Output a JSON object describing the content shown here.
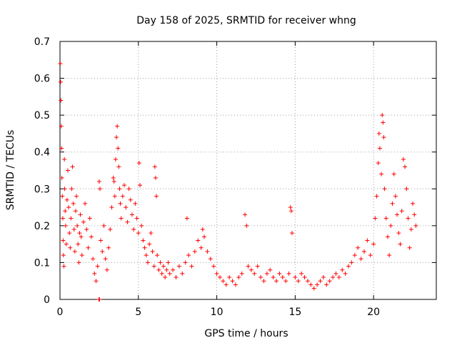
{
  "chart_data": {
    "type": "scatter",
    "title": "Day 158 of 2025, SRMTID for receiver whng",
    "xlabel": "GPS time / hours",
    "ylabel": "SRMTID / TECUs",
    "xlim": [
      0,
      24
    ],
    "ylim": [
      0,
      0.7
    ],
    "xticks": [
      0,
      5,
      10,
      15,
      20
    ],
    "xtick_labels": [
      "0",
      "5",
      "10",
      "15",
      "20"
    ],
    "yticks": [
      0,
      0.1,
      0.2,
      0.3,
      0.4,
      0.5,
      0.6,
      0.7
    ],
    "ytick_labels": [
      "0",
      "0.1",
      "0.2",
      "0.3",
      "0.4",
      "0.5",
      "0.6",
      "0.7"
    ],
    "grid": true,
    "marker": "+",
    "series": [
      {
        "name": "SRMTID",
        "color": "#ff0000",
        "points": [
          [
            0.02,
            0.64
          ],
          [
            0.04,
            0.59
          ],
          [
            0.06,
            0.54
          ],
          [
            0.08,
            0.47
          ],
          [
            0.1,
            0.41
          ],
          [
            0.12,
            0.33
          ],
          [
            0.15,
            0.28
          ],
          [
            0.18,
            0.22
          ],
          [
            0.2,
            0.16
          ],
          [
            0.22,
            0.12
          ],
          [
            0.25,
            0.09
          ],
          [
            0.28,
            0.38
          ],
          [
            0.3,
            0.3
          ],
          [
            0.33,
            0.24
          ],
          [
            0.36,
            0.2
          ],
          [
            0.4,
            0.15
          ],
          [
            0.45,
            0.27
          ],
          [
            0.5,
            0.35
          ],
          [
            0.55,
            0.25
          ],
          [
            0.6,
            0.18
          ],
          [
            0.65,
            0.14
          ],
          [
            0.7,
            0.22
          ],
          [
            0.75,
            0.3
          ],
          [
            0.8,
            0.36
          ],
          [
            0.85,
            0.26
          ],
          [
            0.9,
            0.19
          ],
          [
            0.95,
            0.13
          ],
          [
            1.0,
            0.24
          ],
          [
            1.05,
            0.28
          ],
          [
            1.1,
            0.2
          ],
          [
            1.15,
            0.15
          ],
          [
            1.2,
            0.1
          ],
          [
            1.25,
            0.18
          ],
          [
            1.3,
            0.23
          ],
          [
            1.35,
            0.17
          ],
          [
            1.4,
            0.12
          ],
          [
            1.5,
            0.21
          ],
          [
            1.6,
            0.26
          ],
          [
            1.7,
            0.19
          ],
          [
            1.8,
            0.14
          ],
          [
            1.9,
            0.22
          ],
          [
            2.0,
            0.17
          ],
          [
            2.1,
            0.11
          ],
          [
            2.2,
            0.07
          ],
          [
            2.3,
            0.05
          ],
          [
            2.4,
            0.09
          ],
          [
            2.5,
            0.32
          ],
          [
            2.55,
            0.3
          ],
          [
            2.6,
            0.16
          ],
          [
            2.7,
            0.13
          ],
          [
            2.8,
            0.2
          ],
          [
            2.9,
            0.11
          ],
          [
            3.0,
            0.08
          ],
          [
            3.1,
            0.14
          ],
          [
            3.2,
            0.19
          ],
          [
            3.3,
            0.25
          ],
          [
            3.4,
            0.33
          ],
          [
            3.45,
            0.32
          ],
          [
            3.5,
            0.28
          ],
          [
            3.55,
            0.38
          ],
          [
            3.6,
            0.44
          ],
          [
            3.65,
            0.47
          ],
          [
            3.7,
            0.41
          ],
          [
            3.75,
            0.36
          ],
          [
            3.8,
            0.3
          ],
          [
            3.85,
            0.26
          ],
          [
            3.9,
            0.22
          ],
          [
            4.0,
            0.28
          ],
          [
            4.1,
            0.31
          ],
          [
            4.2,
            0.25
          ],
          [
            4.3,
            0.21
          ],
          [
            4.4,
            0.3
          ],
          [
            4.5,
            0.27
          ],
          [
            4.6,
            0.23
          ],
          [
            4.7,
            0.19
          ],
          [
            4.8,
            0.26
          ],
          [
            4.9,
            0.22
          ],
          [
            5.0,
            0.18
          ],
          [
            5.05,
            0.37
          ],
          [
            5.1,
            0.31
          ],
          [
            5.2,
            0.2
          ],
          [
            5.3,
            0.16
          ],
          [
            5.4,
            0.14
          ],
          [
            5.5,
            0.12
          ],
          [
            5.6,
            0.1
          ],
          [
            5.7,
            0.15
          ],
          [
            5.8,
            0.18
          ],
          [
            5.9,
            0.13
          ],
          [
            6.0,
            0.09
          ],
          [
            6.05,
            0.36
          ],
          [
            6.1,
            0.33
          ],
          [
            6.15,
            0.28
          ],
          [
            6.2,
            0.12
          ],
          [
            6.3,
            0.08
          ],
          [
            6.4,
            0.1
          ],
          [
            6.5,
            0.07
          ],
          [
            6.6,
            0.09
          ],
          [
            6.7,
            0.06
          ],
          [
            6.8,
            0.08
          ],
          [
            6.9,
            0.1
          ],
          [
            7.0,
            0.07
          ],
          [
            7.2,
            0.08
          ],
          [
            7.4,
            0.06
          ],
          [
            7.6,
            0.09
          ],
          [
            7.8,
            0.07
          ],
          [
            8.0,
            0.1
          ],
          [
            8.1,
            0.22
          ],
          [
            8.2,
            0.12
          ],
          [
            8.4,
            0.09
          ],
          [
            8.6,
            0.13
          ],
          [
            8.8,
            0.16
          ],
          [
            9.0,
            0.14
          ],
          [
            9.1,
            0.19
          ],
          [
            9.2,
            0.17
          ],
          [
            9.4,
            0.13
          ],
          [
            9.6,
            0.11
          ],
          [
            9.8,
            0.09
          ],
          [
            10.0,
            0.07
          ],
          [
            10.2,
            0.06
          ],
          [
            10.4,
            0.05
          ],
          [
            10.6,
            0.04
          ],
          [
            10.8,
            0.06
          ],
          [
            11.0,
            0.05
          ],
          [
            11.2,
            0.04
          ],
          [
            11.4,
            0.06
          ],
          [
            11.6,
            0.07
          ],
          [
            11.8,
            0.23
          ],
          [
            11.9,
            0.2
          ],
          [
            12.0,
            0.09
          ],
          [
            12.2,
            0.08
          ],
          [
            12.4,
            0.07
          ],
          [
            12.6,
            0.09
          ],
          [
            12.8,
            0.06
          ],
          [
            13.0,
            0.05
          ],
          [
            13.2,
            0.07
          ],
          [
            13.4,
            0.08
          ],
          [
            13.6,
            0.06
          ],
          [
            13.8,
            0.05
          ],
          [
            14.0,
            0.07
          ],
          [
            14.2,
            0.06
          ],
          [
            14.4,
            0.05
          ],
          [
            14.6,
            0.07
          ],
          [
            14.7,
            0.25
          ],
          [
            14.75,
            0.24
          ],
          [
            14.8,
            0.18
          ],
          [
            15.0,
            0.06
          ],
          [
            15.2,
            0.05
          ],
          [
            15.4,
            0.07
          ],
          [
            15.6,
            0.06
          ],
          [
            15.8,
            0.05
          ],
          [
            16.0,
            0.04
          ],
          [
            16.2,
            0.03
          ],
          [
            16.4,
            0.04
          ],
          [
            16.6,
            0.05
          ],
          [
            16.8,
            0.06
          ],
          [
            17.0,
            0.04
          ],
          [
            17.2,
            0.05
          ],
          [
            17.4,
            0.06
          ],
          [
            17.6,
            0.07
          ],
          [
            17.8,
            0.06
          ],
          [
            18.0,
            0.08
          ],
          [
            18.2,
            0.07
          ],
          [
            18.4,
            0.09
          ],
          [
            18.6,
            0.1
          ],
          [
            18.8,
            0.12
          ],
          [
            19.0,
            0.14
          ],
          [
            19.2,
            0.11
          ],
          [
            19.4,
            0.13
          ],
          [
            19.6,
            0.16
          ],
          [
            19.8,
            0.12
          ],
          [
            20.0,
            0.15
          ],
          [
            20.1,
            0.22
          ],
          [
            20.2,
            0.28
          ],
          [
            20.3,
            0.37
          ],
          [
            20.35,
            0.45
          ],
          [
            20.4,
            0.41
          ],
          [
            20.5,
            0.34
          ],
          [
            20.55,
            0.5
          ],
          [
            20.6,
            0.48
          ],
          [
            20.65,
            0.44
          ],
          [
            20.7,
            0.3
          ],
          [
            20.8,
            0.22
          ],
          [
            20.9,
            0.17
          ],
          [
            21.0,
            0.12
          ],
          [
            21.1,
            0.2
          ],
          [
            21.2,
            0.26
          ],
          [
            21.3,
            0.34
          ],
          [
            21.4,
            0.28
          ],
          [
            21.5,
            0.23
          ],
          [
            21.6,
            0.18
          ],
          [
            21.7,
            0.15
          ],
          [
            21.8,
            0.24
          ],
          [
            21.9,
            0.38
          ],
          [
            22.0,
            0.36
          ],
          [
            22.1,
            0.3
          ],
          [
            22.2,
            0.22
          ],
          [
            22.3,
            0.14
          ],
          [
            22.4,
            0.19
          ],
          [
            22.5,
            0.26
          ],
          [
            22.6,
            0.23
          ],
          [
            22.7,
            0.2
          ],
          [
            2.48,
            0.0
          ],
          [
            2.52,
            0.0
          ]
        ]
      }
    ]
  }
}
